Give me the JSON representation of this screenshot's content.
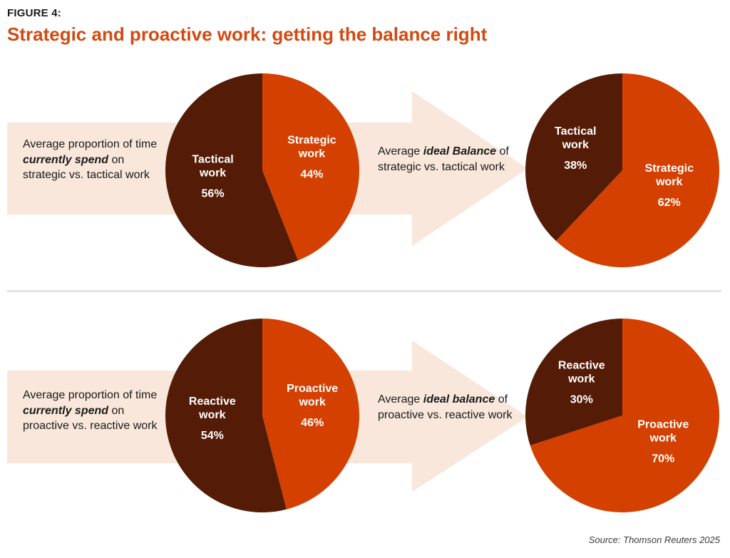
{
  "figure_label": "FIGURE 4:",
  "title": "Strategic and proactive work: getting the balance right",
  "source": "Source: Thomson Reuters 2025",
  "colors": {
    "dark": "#541c07",
    "orange": "#d44000",
    "arrow": "#f8e7da",
    "white": "#ffffff"
  },
  "rows": [
    {
      "current_text": {
        "p1": "Average proportion of time ",
        "em1": "currently spend",
        "p2": " on strategic vs. tactical work"
      },
      "ideal_text": {
        "p1": "Average ",
        "em1": "ideal Balance",
        "p2": " of strategic vs. tactical work"
      },
      "current_label_dark": "Tactical work",
      "current_label_orange": "Strategic work",
      "ideal_label_dark": "Tactical work",
      "ideal_label_orange": "Strategic work"
    },
    {
      "current_text": {
        "p1": "Average proportion of time ",
        "em1": "currently spend",
        "p2": " on proactive vs. reactive work"
      },
      "ideal_text": {
        "p1": "Average ",
        "em1": "ideal balance",
        "p2": " of proactive vs. reactive work"
      },
      "current_label_dark": "Reactive work",
      "current_label_orange": "Proactive work",
      "ideal_label_dark": "Reactive work",
      "ideal_label_orange": "Proactive work"
    }
  ],
  "chart_data": [
    {
      "type": "pie",
      "title": "Current: strategic vs. tactical work",
      "labels": [
        "Strategic work",
        "Tactical work"
      ],
      "values": [
        44,
        56
      ],
      "value_labels": [
        "44%",
        "56%"
      ]
    },
    {
      "type": "pie",
      "title": "Ideal: strategic vs. tactical work",
      "labels": [
        "Strategic work",
        "Tactical work"
      ],
      "values": [
        62,
        38
      ],
      "value_labels": [
        "62%",
        "38%"
      ]
    },
    {
      "type": "pie",
      "title": "Current: proactive vs. reactive work",
      "labels": [
        "Proactive work",
        "Reactive work"
      ],
      "values": [
        46,
        54
      ],
      "value_labels": [
        "46%",
        "54%"
      ]
    },
    {
      "type": "pie",
      "title": "Ideal: proactive vs. reactive work",
      "labels": [
        "Proactive work",
        "Reactive work"
      ],
      "values": [
        70,
        30
      ],
      "value_labels": [
        "70%",
        "30%"
      ]
    }
  ]
}
